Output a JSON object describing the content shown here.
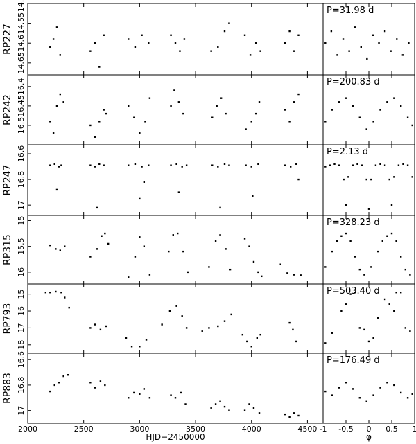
{
  "chart_data": [
    {
      "type": "scatter",
      "ylabel": "RP227",
      "xlim": [
        2000,
        4640
      ],
      "xticks": [
        2000,
        2500,
        3000,
        3500,
        4000,
        4500
      ],
      "ylim": [
        14.5,
        14.68
      ],
      "inverted": true,
      "yticks": [
        14.5,
        14.55,
        14.6,
        14.65
      ],
      "color": "#000000",
      "x": [
        2200,
        2230,
        2260,
        2290,
        2560,
        2600,
        2640,
        2680,
        2900,
        2960,
        3020,
        3080,
        3280,
        3320,
        3360,
        3400,
        3640,
        3700,
        3760,
        3800,
        3940,
        3990,
        4040,
        4080,
        4300,
        4340,
        4380,
        4420
      ],
      "y": [
        14.61,
        14.59,
        14.56,
        14.63,
        14.62,
        14.6,
        14.66,
        14.58,
        14.59,
        14.61,
        14.58,
        14.6,
        14.58,
        14.6,
        14.62,
        14.59,
        14.62,
        14.61,
        14.57,
        14.55,
        14.58,
        14.63,
        14.6,
        14.62,
        14.6,
        14.57,
        14.62,
        14.58
      ]
    },
    {
      "type": "scatter",
      "annotation": "P=31.98 d",
      "xlim": [
        -1,
        1
      ],
      "xticks": [
        -1,
        -0.5,
        0,
        0.5,
        1
      ],
      "ylim": [
        14.5,
        14.68
      ],
      "inverted": true,
      "color": "#000000",
      "x": [
        -0.95,
        -0.82,
        -0.69,
        -0.56,
        -0.43,
        -0.3,
        -0.17,
        -0.04,
        0.09,
        0.22,
        0.35,
        0.48,
        0.61,
        0.74,
        0.87
      ],
      "y": [
        14.6,
        14.57,
        14.63,
        14.59,
        14.62,
        14.56,
        14.61,
        14.64,
        14.58,
        14.6,
        14.57,
        14.62,
        14.59,
        14.63,
        14.6
      ]
    },
    {
      "type": "scatter",
      "ylabel": "RP242",
      "xlim": [
        2000,
        4640
      ],
      "xticks": [
        2000,
        2500,
        3000,
        3500,
        4000,
        4500
      ],
      "ylim": [
        16.37,
        16.55
      ],
      "inverted": true,
      "yticks": [
        16.4,
        16.45,
        16.5
      ],
      "color": "#000000",
      "x": [
        2200,
        2230,
        2260,
        2290,
        2320,
        2560,
        2600,
        2640,
        2680,
        2700,
        2900,
        2950,
        3000,
        3050,
        3090,
        3280,
        3310,
        3350,
        3390,
        3650,
        3690,
        3730,
        3770,
        3950,
        4000,
        4040,
        4070,
        4300,
        4340,
        4380,
        4420
      ],
      "y": [
        16.49,
        16.52,
        16.45,
        16.42,
        16.44,
        16.5,
        16.53,
        16.49,
        16.46,
        16.47,
        16.45,
        16.48,
        16.52,
        16.49,
        16.43,
        16.45,
        16.41,
        16.44,
        16.47,
        16.48,
        16.45,
        16.43,
        16.47,
        16.51,
        16.49,
        16.47,
        16.44,
        16.46,
        16.49,
        16.44,
        16.42
      ]
    },
    {
      "type": "scatter",
      "annotation": "P=200.83 d",
      "xlim": [
        -1,
        1
      ],
      "xticks": [
        -1,
        -0.5,
        0,
        0.5,
        1
      ],
      "ylim": [
        16.37,
        16.55
      ],
      "inverted": true,
      "color": "#000000",
      "x": [
        -0.95,
        -0.8,
        -0.65,
        -0.5,
        -0.35,
        -0.2,
        -0.05,
        0.1,
        0.25,
        0.4,
        0.55,
        0.7,
        0.85,
        0.95
      ],
      "y": [
        16.49,
        16.46,
        16.44,
        16.43,
        16.45,
        16.48,
        16.51,
        16.49,
        16.46,
        16.44,
        16.43,
        16.45,
        16.48,
        16.5
      ]
    },
    {
      "type": "scatter",
      "ylabel": "RP247",
      "xlim": [
        2000,
        4640
      ],
      "xticks": [
        2000,
        2500,
        3000,
        3500,
        4000,
        4500
      ],
      "ylim": [
        16.53,
        17.08
      ],
      "inverted": true,
      "yticks": [
        16.6,
        16.8,
        17
      ],
      "color": "#000000",
      "x": [
        2200,
        2240,
        2280,
        2300,
        2260,
        2560,
        2600,
        2640,
        2680,
        2620,
        2900,
        2960,
        3020,
        3080,
        3000,
        3040,
        3280,
        3330,
        3380,
        3420,
        3350,
        3650,
        3700,
        3760,
        3800,
        3720,
        3950,
        4000,
        4060,
        4010,
        4300,
        4350,
        4400,
        4420
      ],
      "y": [
        16.69,
        16.68,
        16.7,
        16.69,
        16.88,
        16.69,
        16.7,
        16.68,
        16.69,
        17.02,
        16.69,
        16.68,
        16.7,
        16.69,
        16.95,
        16.82,
        16.69,
        16.68,
        16.7,
        16.69,
        16.9,
        16.69,
        16.7,
        16.68,
        16.69,
        17.02,
        16.69,
        16.7,
        16.68,
        16.93,
        16.69,
        16.7,
        16.68,
        16.8
      ]
    },
    {
      "type": "scatter",
      "annotation": "P=2.13 d",
      "xlim": [
        -1,
        1
      ],
      "xticks": [
        -1,
        -0.5,
        0,
        0.5,
        1
      ],
      "ylim": [
        16.53,
        17.08
      ],
      "inverted": true,
      "color": "#000000",
      "x": [
        -0.95,
        -0.85,
        -0.75,
        -0.65,
        -0.55,
        -0.5,
        -0.45,
        -0.35,
        -0.25,
        -0.15,
        -0.05,
        0,
        0.05,
        0.15,
        0.25,
        0.35,
        0.45,
        0.5,
        0.55,
        0.65,
        0.75,
        0.85,
        0.95
      ],
      "y": [
        16.7,
        16.69,
        16.68,
        16.69,
        16.8,
        17.0,
        16.78,
        16.69,
        16.68,
        16.69,
        16.8,
        17.03,
        16.8,
        16.69,
        16.68,
        16.69,
        16.8,
        17.0,
        16.78,
        16.69,
        16.68,
        16.69,
        16.78
      ]
    },
    {
      "type": "scatter",
      "ylabel": "RP315",
      "xlim": [
        2000,
        4640
      ],
      "xticks": [
        2000,
        2500,
        3000,
        3500,
        4000,
        4500
      ],
      "ylim": [
        14.9,
        16.23
      ],
      "inverted": true,
      "yticks": [
        15,
        15.5,
        16
      ],
      "color": "#000000",
      "x": [
        2200,
        2250,
        2290,
        2330,
        2560,
        2620,
        2660,
        2690,
        2720,
        2900,
        2960,
        3000,
        3040,
        3090,
        3260,
        3300,
        3340,
        3390,
        3430,
        3620,
        3680,
        3720,
        3770,
        3810,
        3940,
        3980,
        4020,
        4060,
        4090,
        4260,
        4320,
        4380,
        4440
      ],
      "y": [
        15.48,
        15.55,
        15.58,
        15.5,
        15.7,
        15.55,
        15.3,
        15.25,
        15.45,
        16.1,
        15.7,
        15.32,
        15.5,
        16.05,
        15.6,
        15.28,
        15.25,
        15.6,
        16.0,
        15.9,
        15.4,
        15.28,
        15.55,
        15.95,
        15.35,
        15.5,
        15.8,
        16.0,
        16.08,
        15.85,
        16.02,
        16.05,
        16.06
      ]
    },
    {
      "type": "scatter",
      "annotation": "P=328.23 d",
      "xlim": [
        -1,
        1
      ],
      "xticks": [
        -1,
        -0.5,
        0,
        0.5,
        1
      ],
      "ylim": [
        14.9,
        16.23
      ],
      "inverted": true,
      "color": "#000000",
      "x": [
        -0.95,
        -0.8,
        -0.7,
        -0.6,
        -0.5,
        -0.4,
        -0.3,
        -0.2,
        -0.1,
        0.05,
        0.2,
        0.3,
        0.4,
        0.5,
        0.6,
        0.7,
        0.8,
        0.9
      ],
      "y": [
        15.9,
        15.6,
        15.4,
        15.3,
        15.25,
        15.4,
        15.7,
        15.95,
        16.05,
        15.9,
        15.6,
        15.4,
        15.3,
        15.25,
        15.4,
        15.7,
        15.95,
        16.05
      ]
    },
    {
      "type": "scatter",
      "ylabel": "RP793",
      "xlim": [
        2000,
        4640
      ],
      "xticks": [
        2000,
        2500,
        3000,
        3500,
        4000,
        4500
      ],
      "ylim": [
        14.4,
        18.5
      ],
      "inverted": true,
      "yticks": [
        15,
        16,
        17,
        18
      ],
      "color": "#000000",
      "x": [
        2160,
        2200,
        2250,
        2300,
        2330,
        2370,
        2560,
        2600,
        2650,
        2700,
        2880,
        2930,
        3000,
        3060,
        3200,
        3270,
        3330,
        3380,
        3420,
        3560,
        3620,
        3700,
        3760,
        3820,
        3920,
        3960,
        4000,
        4050,
        4080,
        4340,
        4370,
        4400
      ],
      "y": [
        14.9,
        14.9,
        14.85,
        14.9,
        15.2,
        15.8,
        17.0,
        16.8,
        17.1,
        16.9,
        17.6,
        18.1,
        18.1,
        17.7,
        16.8,
        16.0,
        15.7,
        16.3,
        17.0,
        17.2,
        17.0,
        16.9,
        16.6,
        16.2,
        17.4,
        17.8,
        18.1,
        17.6,
        17.4,
        16.7,
        17.1,
        17.8
      ]
    },
    {
      "type": "scatter",
      "annotation": "P=503.40 d",
      "xlim": [
        -1,
        1
      ],
      "xticks": [
        -1,
        -0.5,
        0,
        0.5,
        1
      ],
      "ylim": [
        14.4,
        18.5
      ],
      "inverted": true,
      "color": "#000000",
      "x": [
        -0.95,
        -0.8,
        -0.6,
        -0.5,
        -0.4,
        -0.3,
        -0.2,
        -0.1,
        0,
        0.1,
        0.2,
        0.35,
        0.45,
        0.55,
        0.6,
        0.7,
        0.8,
        0.9
      ],
      "y": [
        17.9,
        17.3,
        16.0,
        15.6,
        15.0,
        14.9,
        17.0,
        17.1,
        17.8,
        17.6,
        16.4,
        15.3,
        15.6,
        16.0,
        14.9,
        14.9,
        17.0,
        17.2
      ]
    },
    {
      "type": "scatter",
      "ylabel": "RP883",
      "xlabel": "HJD−2450000",
      "xlim": [
        2000,
        4640
      ],
      "xticks": [
        2000,
        2500,
        3000,
        3500,
        4000,
        4500
      ],
      "ylim": [
        16.55,
        17.1
      ],
      "inverted": true,
      "yticks": [
        16.6,
        16.8,
        17
      ],
      "color": "#000000",
      "x": [
        2200,
        2240,
        2280,
        2320,
        2360,
        2560,
        2600,
        2650,
        2690,
        2900,
        2950,
        3000,
        3040,
        3090,
        3280,
        3320,
        3370,
        3410,
        3640,
        3680,
        3720,
        3760,
        3800,
        3940,
        3980,
        4020,
        4070,
        4300,
        4340,
        4380,
        4420
      ],
      "y": [
        16.85,
        16.8,
        16.78,
        16.73,
        16.72,
        16.78,
        16.82,
        16.77,
        16.8,
        16.9,
        16.86,
        16.87,
        16.83,
        16.9,
        16.88,
        16.9,
        16.86,
        16.95,
        16.98,
        16.95,
        16.93,
        16.97,
        17.0,
        17.0,
        16.95,
        16.98,
        17.02,
        17.03,
        17.05,
        17.02,
        17.04
      ]
    },
    {
      "type": "scatter",
      "annotation": "P=176.49 d",
      "xlabel": "φ",
      "xlim": [
        -1,
        1
      ],
      "xticks": [
        -1,
        -0.5,
        0,
        0.5,
        1
      ],
      "ylim": [
        16.55,
        17.1
      ],
      "inverted": true,
      "color": "#000000",
      "x": [
        -0.95,
        -0.8,
        -0.65,
        -0.5,
        -0.35,
        -0.2,
        -0.05,
        0.1,
        0.25,
        0.4,
        0.55,
        0.7,
        0.85,
        0.95
      ],
      "y": [
        16.85,
        16.88,
        16.82,
        16.78,
        16.83,
        16.9,
        16.93,
        16.88,
        16.82,
        16.78,
        16.8,
        16.86,
        16.9,
        16.87
      ]
    }
  ]
}
